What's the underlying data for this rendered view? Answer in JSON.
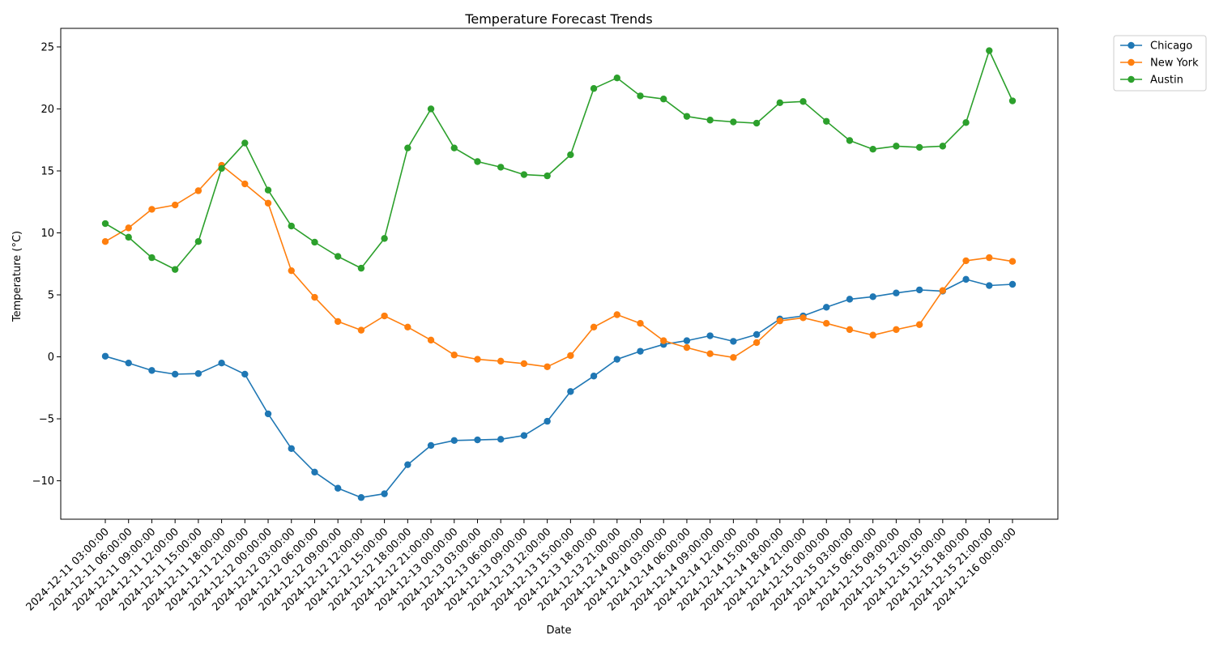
{
  "chart_data": {
    "type": "line",
    "title": "Temperature Forecast Trends",
    "xlabel": "Date",
    "ylabel": "Temperature (°C)",
    "x": [
      "2024-12-11 03:00:00",
      "2024-12-11 06:00:00",
      "2024-12-11 09:00:00",
      "2024-12-11 12:00:00",
      "2024-12-11 15:00:00",
      "2024-12-11 18:00:00",
      "2024-12-11 21:00:00",
      "2024-12-12 00:00:00",
      "2024-12-12 03:00:00",
      "2024-12-12 06:00:00",
      "2024-12-12 09:00:00",
      "2024-12-12 12:00:00",
      "2024-12-12 15:00:00",
      "2024-12-12 18:00:00",
      "2024-12-12 21:00:00",
      "2024-12-13 00:00:00",
      "2024-12-13 03:00:00",
      "2024-12-13 06:00:00",
      "2024-12-13 09:00:00",
      "2024-12-13 12:00:00",
      "2024-12-13 15:00:00",
      "2024-12-13 18:00:00",
      "2024-12-13 21:00:00",
      "2024-12-14 00:00:00",
      "2024-12-14 03:00:00",
      "2024-12-14 06:00:00",
      "2024-12-14 09:00:00",
      "2024-12-14 12:00:00",
      "2024-12-14 15:00:00",
      "2024-12-14 18:00:00",
      "2024-12-14 21:00:00",
      "2024-12-15 00:00:00",
      "2024-12-15 03:00:00",
      "2024-12-15 06:00:00",
      "2024-12-15 09:00:00",
      "2024-12-15 12:00:00",
      "2024-12-15 15:00:00",
      "2024-12-15 18:00:00",
      "2024-12-15 21:00:00",
      "2024-12-16 00:00:00"
    ],
    "series": [
      {
        "name": "Chicago",
        "color": "#1f77b4",
        "values": [
          0.05,
          -0.5,
          -1.1,
          -1.4,
          -1.35,
          -0.5,
          -1.4,
          -4.6,
          -7.4,
          -9.3,
          -10.6,
          -11.35,
          -11.05,
          -8.7,
          -7.15,
          -6.75,
          -6.7,
          -6.65,
          -6.35,
          -5.2,
          -2.8,
          -1.55,
          -0.2,
          0.45,
          1.0,
          1.3,
          1.7,
          1.25,
          1.8,
          3.05,
          3.3,
          4.0,
          4.65,
          4.85,
          5.15,
          5.4,
          5.3,
          6.25,
          5.75,
          5.85
        ]
      },
      {
        "name": "New York",
        "color": "#ff7f0e",
        "values": [
          9.3,
          10.4,
          11.9,
          12.25,
          13.4,
          15.45,
          13.95,
          12.4,
          6.95,
          4.8,
          2.85,
          2.15,
          3.3,
          2.4,
          1.35,
          0.15,
          -0.2,
          -0.35,
          -0.55,
          -0.8,
          0.1,
          2.4,
          3.4,
          2.7,
          1.3,
          0.75,
          0.25,
          -0.05,
          1.15,
          2.9,
          3.15,
          2.7,
          2.2,
          1.75,
          2.2,
          2.6,
          5.35,
          7.75,
          8.0,
          7.7
        ]
      },
      {
        "name": "Austin",
        "color": "#2ca02c",
        "values": [
          10.75,
          9.65,
          8.0,
          7.05,
          9.3,
          15.2,
          17.25,
          13.45,
          10.55,
          9.25,
          8.1,
          7.15,
          9.55,
          16.85,
          20.0,
          16.85,
          15.75,
          15.3,
          14.7,
          14.6,
          16.3,
          21.65,
          22.5,
          21.05,
          20.8,
          19.4,
          19.1,
          18.95,
          18.85,
          20.5,
          20.6,
          19.0,
          17.45,
          16.75,
          17.0,
          16.9,
          17.0,
          18.9,
          24.7,
          20.65
        ]
      }
    ],
    "y_ticks": [
      -10,
      -5,
      0,
      5,
      10,
      15,
      20,
      25
    ],
    "ylim": [
      -13.1,
      26.5
    ],
    "grid": false,
    "legend_placement": "outside-top-right"
  }
}
